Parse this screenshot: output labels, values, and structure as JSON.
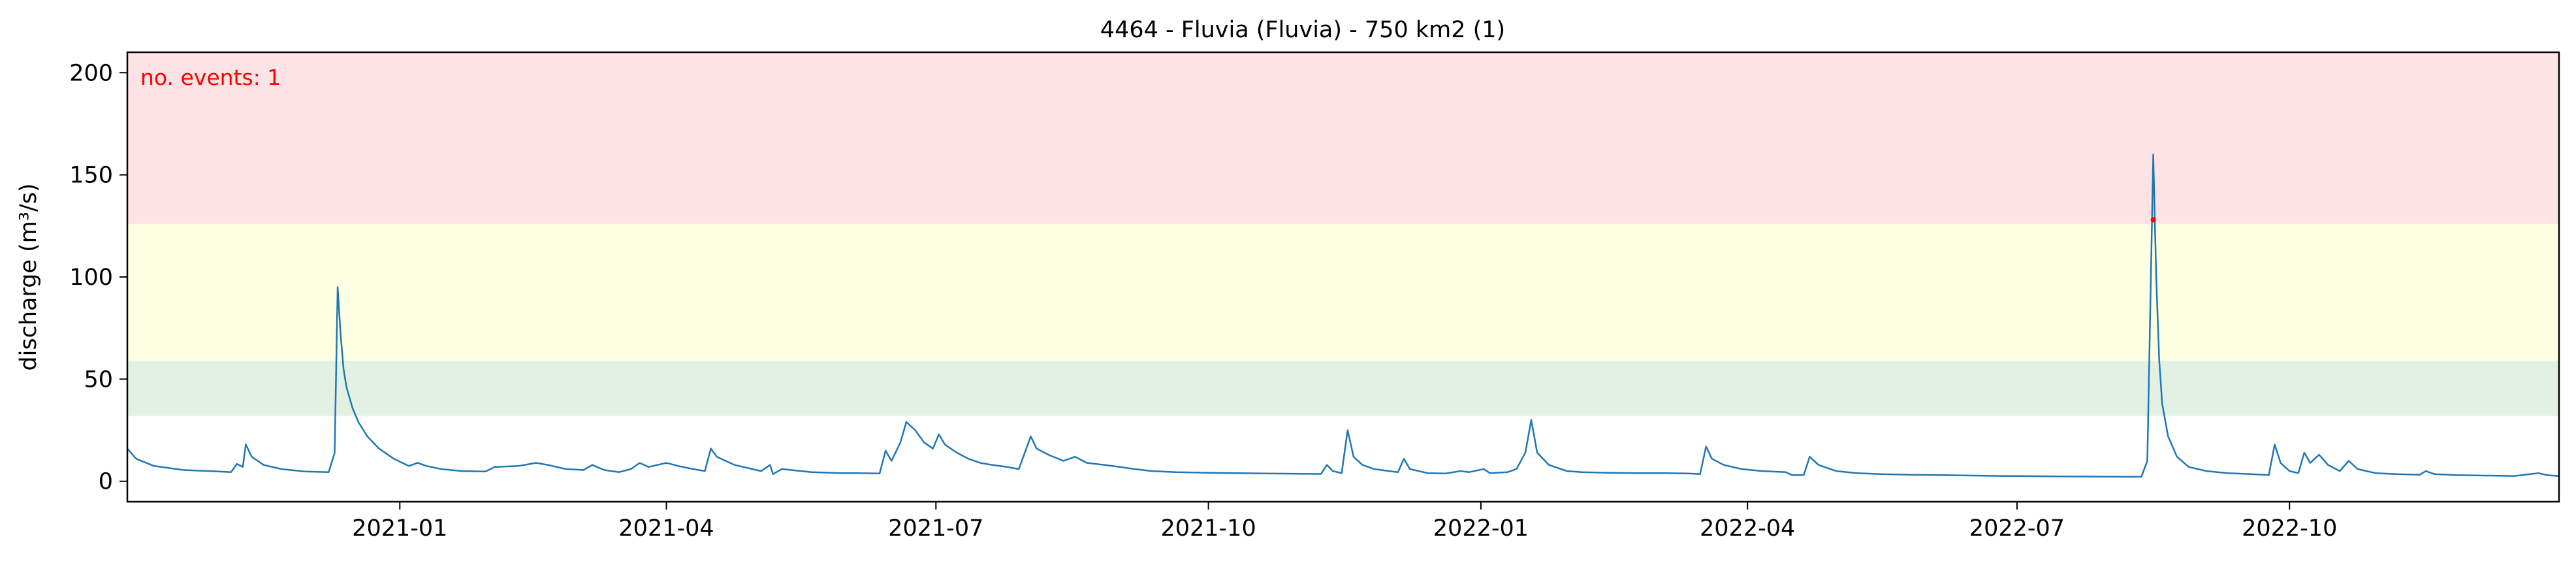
{
  "chart_data": {
    "type": "line",
    "title": "4464 - Fluvia (Fluvia) - 750 km2 (1)",
    "xlabel": "",
    "ylabel": "discharge (m³/s)",
    "annotation": "no. events: 1",
    "xlim": [
      "2020-10-01",
      "2022-12-31"
    ],
    "ylim": [
      -10,
      210
    ],
    "x_ticks": [
      "2021-01-01",
      "2021-04-01",
      "2021-07-01",
      "2021-10-01",
      "2022-01-01",
      "2022-04-01",
      "2022-07-01",
      "2022-10-01"
    ],
    "x_tick_labels": [
      "2021-01",
      "2021-04",
      "2021-07",
      "2021-10",
      "2022-01",
      "2022-04",
      "2022-07",
      "2022-10"
    ],
    "y_ticks": [
      0,
      50,
      100,
      150,
      200
    ],
    "y_tick_labels": [
      "0",
      "50",
      "100",
      "150",
      "200"
    ],
    "threshold_bands": [
      {
        "from": 32,
        "to": 59,
        "color": "#e3f1e4"
      },
      {
        "from": 59,
        "to": 126,
        "color": "#fefee3"
      },
      {
        "from": 126,
        "to": 210,
        "color": "#fee3e5"
      }
    ],
    "series": [
      {
        "color": "#1f77b4",
        "points": [
          [
            "2020-10-01",
            16
          ],
          [
            "2020-10-04",
            11
          ],
          [
            "2020-10-10",
            7.5
          ],
          [
            "2020-10-20",
            5.5
          ],
          [
            "2020-11-01",
            4.8
          ],
          [
            "2020-11-05",
            4.5
          ],
          [
            "2020-11-07",
            8.5
          ],
          [
            "2020-11-09",
            7
          ],
          [
            "2020-11-10",
            18
          ],
          [
            "2020-11-12",
            12
          ],
          [
            "2020-11-16",
            8
          ],
          [
            "2020-11-22",
            6
          ],
          [
            "2020-11-30",
            4.8
          ],
          [
            "2020-12-08",
            4.5
          ],
          [
            "2020-12-10",
            14
          ],
          [
            "2020-12-11",
            95
          ],
          [
            "2020-12-12",
            72
          ],
          [
            "2020-12-13",
            55
          ],
          [
            "2020-12-14",
            46
          ],
          [
            "2020-12-16",
            36
          ],
          [
            "2020-12-18",
            29
          ],
          [
            "2020-12-21",
            22
          ],
          [
            "2020-12-25",
            16
          ],
          [
            "2020-12-30",
            11
          ],
          [
            "2021-01-04",
            7.5
          ],
          [
            "2021-01-07",
            9
          ],
          [
            "2021-01-10",
            7.5
          ],
          [
            "2021-01-15",
            6
          ],
          [
            "2021-01-22",
            5
          ],
          [
            "2021-01-30",
            4.8
          ],
          [
            "2021-02-02",
            7
          ],
          [
            "2021-02-10",
            7.5
          ],
          [
            "2021-02-16",
            9
          ],
          [
            "2021-02-20",
            8
          ],
          [
            "2021-02-26",
            6
          ],
          [
            "2021-03-04",
            5.5
          ],
          [
            "2021-03-07",
            8
          ],
          [
            "2021-03-11",
            5.5
          ],
          [
            "2021-03-16",
            4.5
          ],
          [
            "2021-03-20",
            6
          ],
          [
            "2021-03-23",
            9
          ],
          [
            "2021-03-26",
            7
          ],
          [
            "2021-04-01",
            9
          ],
          [
            "2021-04-05",
            7.5
          ],
          [
            "2021-04-10",
            6
          ],
          [
            "2021-04-14",
            5
          ],
          [
            "2021-04-16",
            16
          ],
          [
            "2021-04-18",
            12
          ],
          [
            "2021-04-24",
            8
          ],
          [
            "2021-04-30",
            6
          ],
          [
            "2021-05-03",
            5
          ],
          [
            "2021-05-06",
            8
          ],
          [
            "2021-05-07",
            3.5
          ],
          [
            "2021-05-10",
            6
          ],
          [
            "2021-05-20",
            4.5
          ],
          [
            "2021-05-30",
            4
          ],
          [
            "2021-06-04",
            4
          ],
          [
            "2021-06-12",
            3.8
          ],
          [
            "2021-06-14",
            15
          ],
          [
            "2021-06-16",
            10
          ],
          [
            "2021-06-19",
            19
          ],
          [
            "2021-06-21",
            29
          ],
          [
            "2021-06-24",
            25
          ],
          [
            "2021-06-27",
            19
          ],
          [
            "2021-06-30",
            16
          ],
          [
            "2021-07-02",
            23
          ],
          [
            "2021-07-04",
            18
          ],
          [
            "2021-07-08",
            14
          ],
          [
            "2021-07-12",
            11
          ],
          [
            "2021-07-16",
            9
          ],
          [
            "2021-07-20",
            8
          ],
          [
            "2021-07-25",
            7
          ],
          [
            "2021-07-29",
            6
          ],
          [
            "2021-08-02",
            22
          ],
          [
            "2021-08-04",
            16
          ],
          [
            "2021-08-08",
            13
          ],
          [
            "2021-08-13",
            10
          ],
          [
            "2021-08-17",
            12
          ],
          [
            "2021-08-21",
            9
          ],
          [
            "2021-08-27",
            8
          ],
          [
            "2021-09-01",
            7
          ],
          [
            "2021-09-06",
            6
          ],
          [
            "2021-09-12",
            5
          ],
          [
            "2021-09-20",
            4.5
          ],
          [
            "2021-09-30",
            4.2
          ],
          [
            "2021-10-09",
            4
          ],
          [
            "2021-10-20",
            3.8
          ],
          [
            "2021-11-01",
            3.7
          ],
          [
            "2021-11-08",
            3.6
          ],
          [
            "2021-11-10",
            8
          ],
          [
            "2021-11-12",
            5
          ],
          [
            "2021-11-15",
            4
          ],
          [
            "2021-11-17",
            25
          ],
          [
            "2021-11-19",
            12
          ],
          [
            "2021-11-22",
            8
          ],
          [
            "2021-11-26",
            6
          ],
          [
            "2021-12-01",
            5
          ],
          [
            "2021-12-04",
            4.5
          ],
          [
            "2021-12-06",
            11
          ],
          [
            "2021-12-08",
            6
          ],
          [
            "2021-12-14",
            4
          ],
          [
            "2021-12-20",
            3.8
          ],
          [
            "2021-12-25",
            5
          ],
          [
            "2021-12-28",
            4.5
          ],
          [
            "2022-01-02",
            6
          ],
          [
            "2022-01-04",
            4
          ],
          [
            "2022-01-10",
            4.5
          ],
          [
            "2022-01-13",
            6
          ],
          [
            "2022-01-16",
            14
          ],
          [
            "2022-01-18",
            30
          ],
          [
            "2022-01-20",
            14
          ],
          [
            "2022-01-24",
            8
          ],
          [
            "2022-01-30",
            5
          ],
          [
            "2022-02-04",
            4.5
          ],
          [
            "2022-02-12",
            4.2
          ],
          [
            "2022-02-22",
            4
          ],
          [
            "2022-03-04",
            4
          ],
          [
            "2022-03-12",
            3.8
          ],
          [
            "2022-03-16",
            3.5
          ],
          [
            "2022-03-18",
            17
          ],
          [
            "2022-03-20",
            11
          ],
          [
            "2022-03-24",
            8
          ],
          [
            "2022-03-30",
            6
          ],
          [
            "2022-04-06",
            5
          ],
          [
            "2022-04-14",
            4.5
          ],
          [
            "2022-04-16",
            3
          ],
          [
            "2022-04-20",
            3
          ],
          [
            "2022-04-22",
            12
          ],
          [
            "2022-04-25",
            8
          ],
          [
            "2022-05-01",
            5
          ],
          [
            "2022-05-08",
            4
          ],
          [
            "2022-05-16",
            3.5
          ],
          [
            "2022-05-26",
            3.2
          ],
          [
            "2022-06-06",
            3
          ],
          [
            "2022-06-16",
            2.8
          ],
          [
            "2022-06-26",
            2.6
          ],
          [
            "2022-07-05",
            2.5
          ],
          [
            "2022-07-15",
            2.4
          ],
          [
            "2022-07-25",
            2.3
          ],
          [
            "2022-08-04",
            2.2
          ],
          [
            "2022-08-12",
            2.2
          ],
          [
            "2022-08-14",
            10
          ],
          [
            "2022-08-16",
            160
          ],
          [
            "2022-08-17",
            100
          ],
          [
            "2022-08-18",
            60
          ],
          [
            "2022-08-19",
            38
          ],
          [
            "2022-08-21",
            22
          ],
          [
            "2022-08-24",
            12
          ],
          [
            "2022-08-28",
            7
          ],
          [
            "2022-09-03",
            5
          ],
          [
            "2022-09-10",
            4
          ],
          [
            "2022-09-18",
            3.5
          ],
          [
            "2022-09-24",
            3
          ],
          [
            "2022-09-26",
            18
          ],
          [
            "2022-09-28",
            9
          ],
          [
            "2022-10-01",
            5
          ],
          [
            "2022-10-04",
            4
          ],
          [
            "2022-10-06",
            14
          ],
          [
            "2022-10-08",
            9
          ],
          [
            "2022-10-11",
            13
          ],
          [
            "2022-10-14",
            8
          ],
          [
            "2022-10-18",
            5
          ],
          [
            "2022-10-21",
            10
          ],
          [
            "2022-10-24",
            6
          ],
          [
            "2022-10-30",
            4
          ],
          [
            "2022-11-06",
            3.5
          ],
          [
            "2022-11-14",
            3.2
          ],
          [
            "2022-11-16",
            5
          ],
          [
            "2022-11-19",
            3.5
          ],
          [
            "2022-11-26",
            3
          ],
          [
            "2022-12-06",
            2.8
          ],
          [
            "2022-12-16",
            2.6
          ],
          [
            "2022-12-24",
            4
          ],
          [
            "2022-12-27",
            3
          ],
          [
            "2022-12-31",
            2.5
          ]
        ]
      }
    ],
    "events": [
      {
        "x": "2022-08-16",
        "y": 128,
        "color": "#ff0000"
      }
    ],
    "grid": false,
    "legend": false
  }
}
